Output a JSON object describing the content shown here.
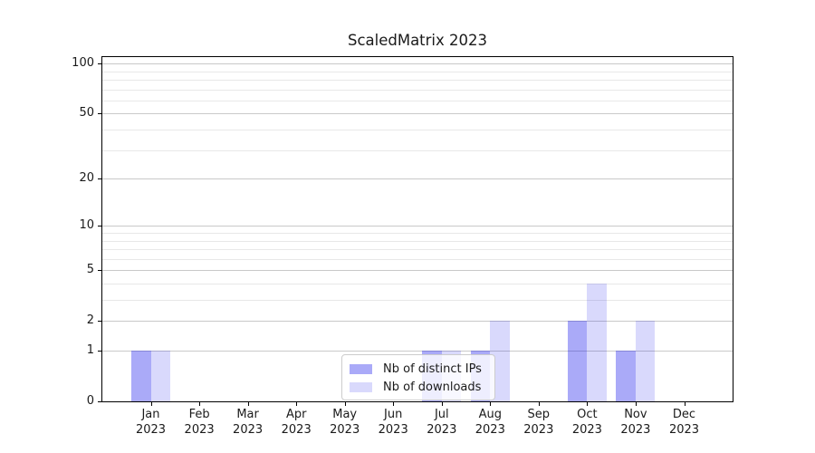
{
  "chart_data": {
    "type": "bar",
    "title": "ScaledMatrix 2023",
    "categories": [
      "Jan\n2023",
      "Feb\n2023",
      "Mar\n2023",
      "Apr\n2023",
      "May\n2023",
      "Jun\n2023",
      "Jul\n2023",
      "Aug\n2023",
      "Sep\n2023",
      "Oct\n2023",
      "Nov\n2023",
      "Dec\n2023"
    ],
    "series": [
      {
        "name": "Nb of distinct IPs",
        "values": [
          1,
          0,
          0,
          0,
          0,
          0,
          1,
          1,
          0,
          2,
          1,
          0
        ],
        "color": "rgba(20,20,235,0.36)",
        "color_hex": "#aaaaf8"
      },
      {
        "name": "Nb of downloads",
        "values": [
          1,
          0,
          0,
          0,
          0,
          0,
          1,
          2,
          0,
          4,
          2,
          0
        ],
        "color": "rgba(20,20,235,0.16)",
        "color_hex": "#d8d8fa"
      }
    ],
    "xlabel": "",
    "ylabel": "",
    "yscale": "log1p",
    "ylim": [
      0,
      112
    ],
    "yticks": [
      0,
      1,
      2,
      5,
      10,
      20,
      50,
      100
    ],
    "minor_gridlines": [
      3,
      4,
      6,
      7,
      8,
      9,
      30,
      40,
      60,
      70,
      80,
      90
    ],
    "grid": "horizontal",
    "legend": {
      "position": "lower center",
      "entries": [
        "Nb of distinct IPs",
        "Nb of downloads"
      ]
    },
    "colors": {
      "major_grid": "#c9c9c9",
      "minor_grid": "#e8e8e8",
      "spine": "#000000",
      "text": "#1a1a1a",
      "legend_border": "#cccccc",
      "legend_bg": "rgba(255,255,255,0.8)"
    }
  }
}
